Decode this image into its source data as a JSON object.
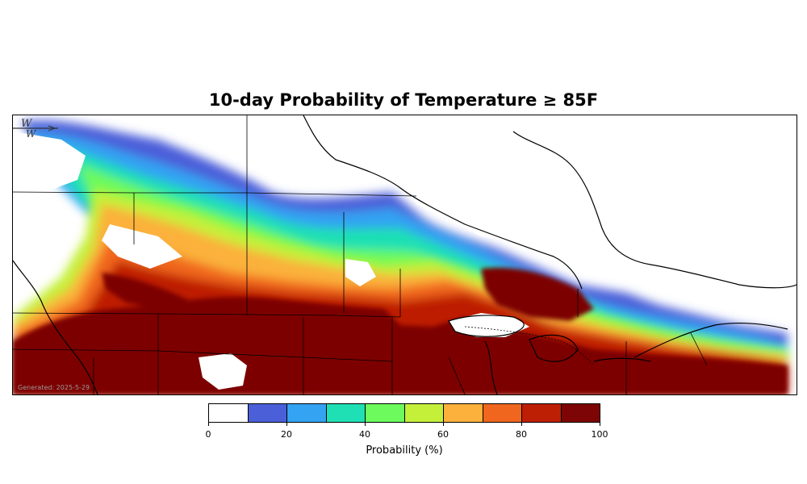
{
  "title": "10-day Probability of Temperature ≥ 85F",
  "generated_text": "Generated: 2025-5-29",
  "colorbar": {
    "label": "Probability (%)",
    "colors": [
      "#ffffff",
      "#4b5fd9",
      "#33a3f2",
      "#1fe0b4",
      "#6dfa5c",
      "#c5f03a",
      "#fbb13b",
      "#f0661e",
      "#bd1f05",
      "#7d0505"
    ],
    "ticks": [
      "0",
      "20",
      "40",
      "60",
      "80",
      "100"
    ]
  }
}
